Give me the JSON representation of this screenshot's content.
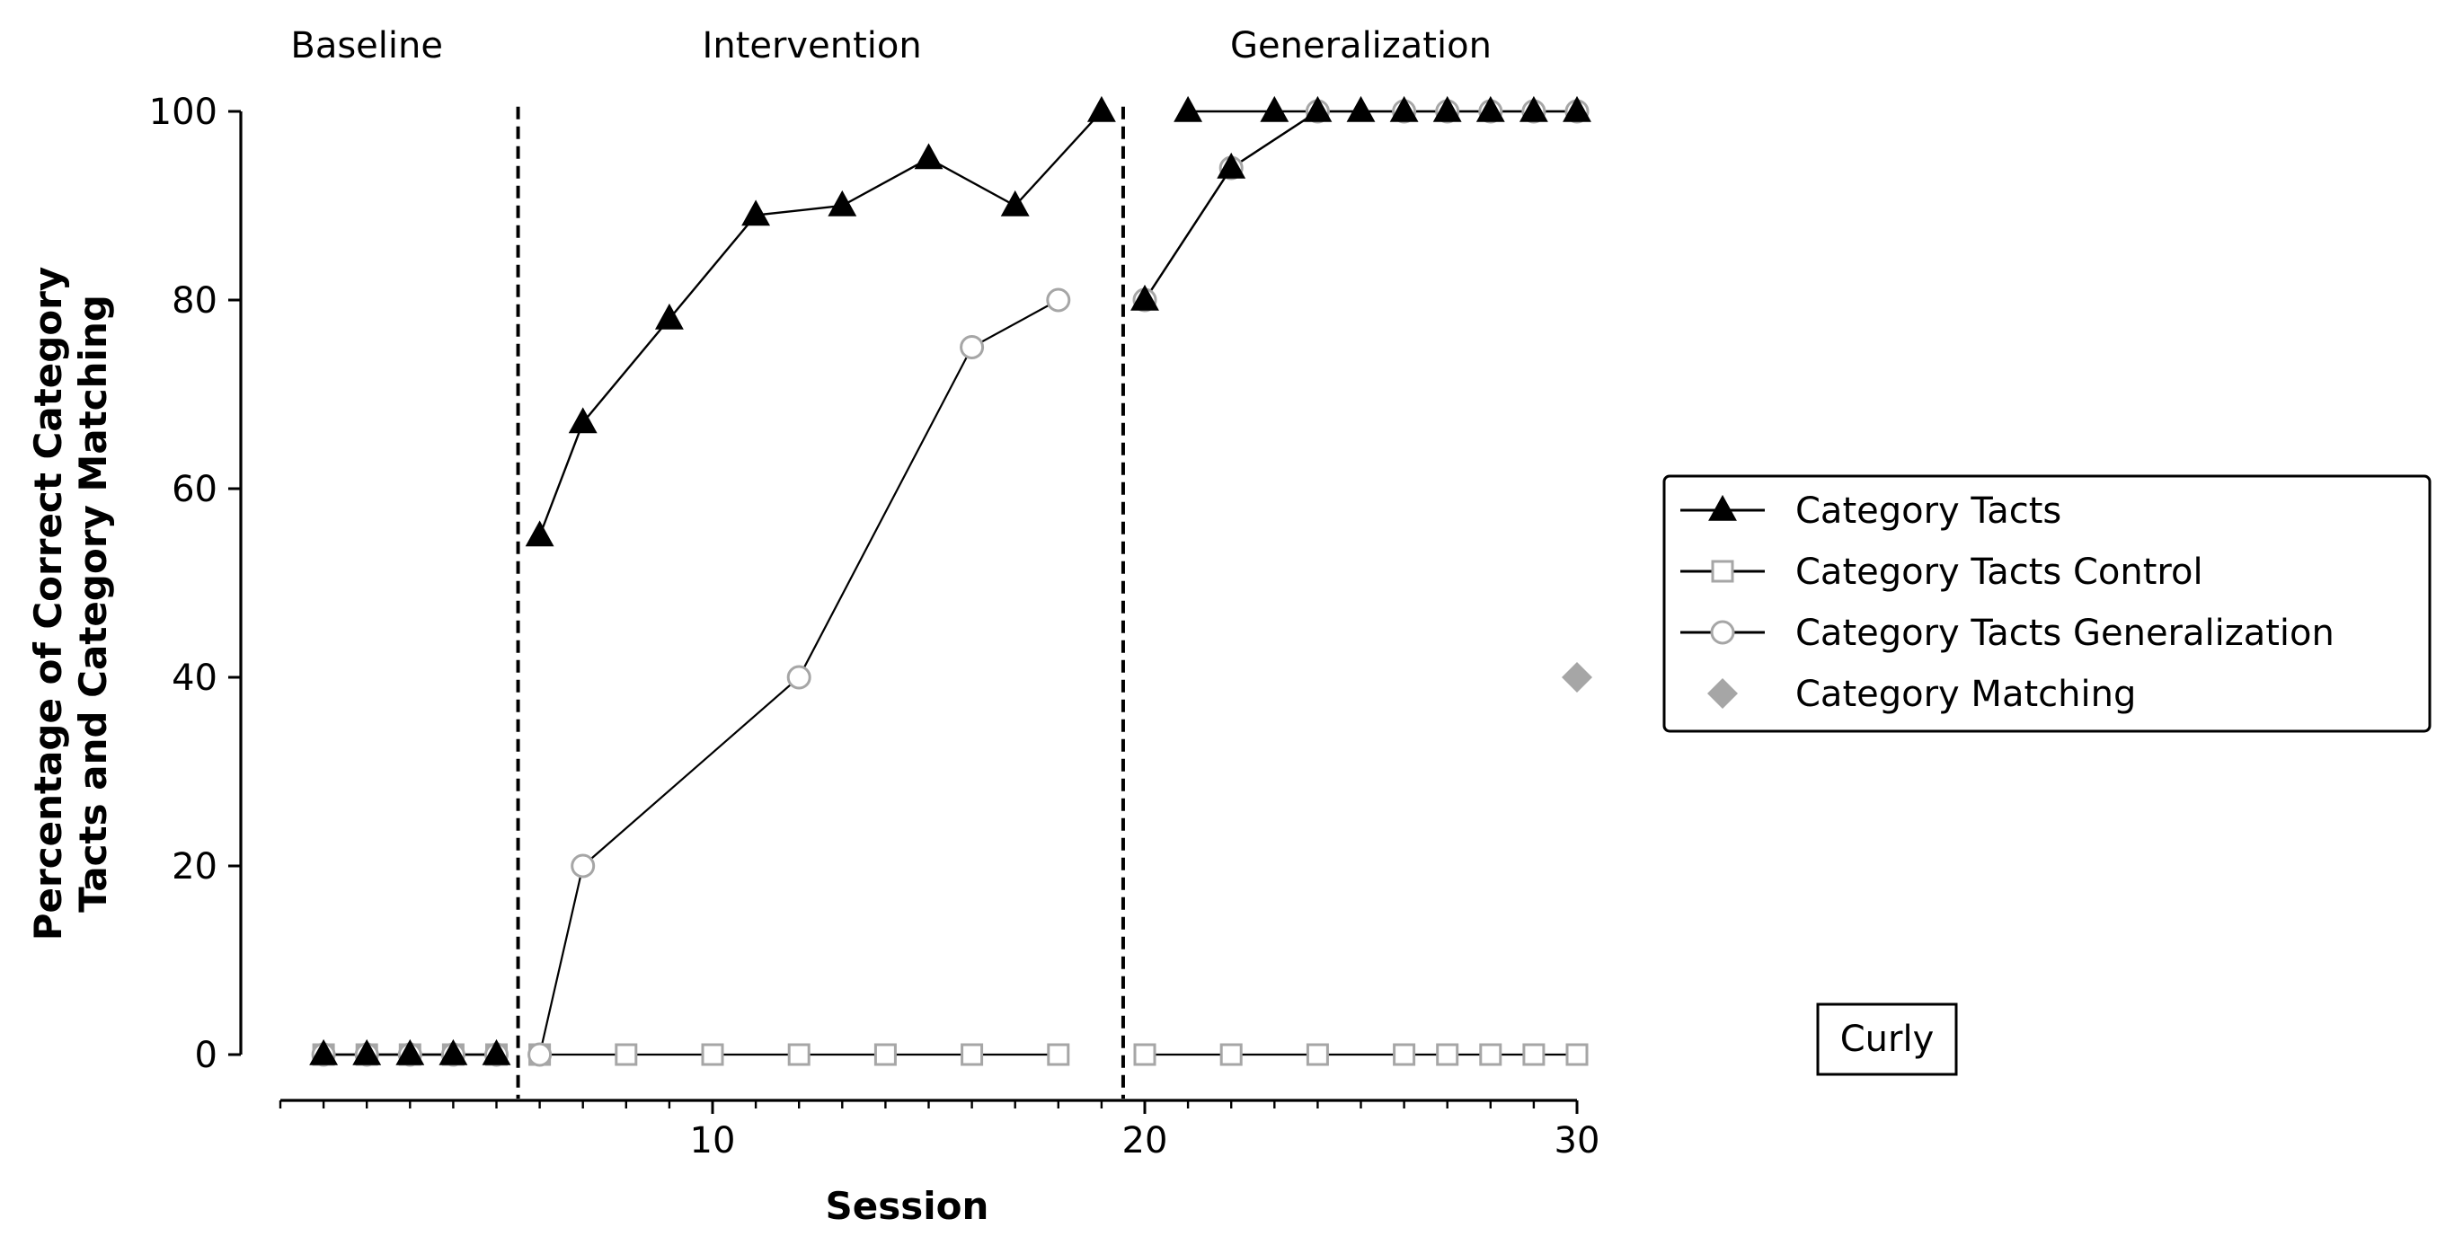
{
  "chart_data": {
    "type": "line",
    "xlabel": "Session",
    "ylabel_lines": [
      "Percentage of Correct Category",
      "Tacts and Category Matching"
    ],
    "xlim": [
      0,
      30
    ],
    "ylim": [
      -5,
      105
    ],
    "xticks_major": [
      10,
      20,
      30
    ],
    "xticks_minor": [
      0,
      1,
      2,
      3,
      4,
      5,
      6,
      7,
      8,
      9,
      10,
      11,
      12,
      13,
      14,
      15,
      16,
      17,
      18,
      19,
      20,
      21,
      22,
      23,
      24,
      25,
      26,
      27,
      28,
      29,
      30
    ],
    "yticks": [
      0,
      20,
      40,
      60,
      80,
      100
    ],
    "grid": false,
    "phase_lines": [
      5.5,
      19.5
    ],
    "phases": [
      {
        "label": "Baseline",
        "x": 2
      },
      {
        "label": "Intervention",
        "x": 12.3
      },
      {
        "label": "Generalization",
        "x": 25.0
      }
    ],
    "participant": "Curly",
    "legend_placement": "right",
    "series": [
      {
        "name": "Category Tacts",
        "marker": "triangle",
        "color": "#000000",
        "fill": "#000000",
        "segments": [
          [
            [
              1,
              0
            ],
            [
              2,
              0
            ],
            [
              3,
              0
            ],
            [
              4,
              0
            ],
            [
              5,
              0
            ]
          ],
          [
            [
              6,
              55
            ],
            [
              7,
              67
            ],
            [
              9,
              78
            ],
            [
              11,
              89
            ],
            [
              13,
              90
            ],
            [
              15,
              95
            ],
            [
              17,
              90
            ],
            [
              19,
              100
            ]
          ],
          [
            [
              20,
              80
            ],
            [
              22,
              94
            ],
            [
              24,
              100
            ]
          ],
          [
            [
              21,
              100
            ],
            [
              23,
              100
            ],
            [
              25,
              100
            ],
            [
              26,
              100
            ],
            [
              27,
              100
            ],
            [
              28,
              100
            ],
            [
              29,
              100
            ],
            [
              30,
              100
            ]
          ]
        ]
      },
      {
        "name": "Category Tacts Control",
        "marker": "square",
        "color": "#000000",
        "markerColor": "#a6a6a6",
        "fill": "#ffffff",
        "segments": [
          [
            [
              1,
              0
            ],
            [
              2,
              0
            ],
            [
              3,
              0
            ],
            [
              4,
              0
            ],
            [
              5,
              0
            ]
          ],
          [
            [
              6,
              0
            ],
            [
              8,
              0
            ],
            [
              10,
              0
            ],
            [
              12,
              0
            ],
            [
              14,
              0
            ],
            [
              16,
              0
            ],
            [
              18,
              0
            ]
          ],
          [
            [
              20,
              0
            ],
            [
              22,
              0
            ],
            [
              24,
              0
            ],
            [
              26,
              0
            ],
            [
              27,
              0
            ],
            [
              28,
              0
            ],
            [
              29,
              0
            ],
            [
              30,
              0
            ]
          ]
        ]
      },
      {
        "name": "Category Tacts Generalization",
        "marker": "circle",
        "color": "#000000",
        "markerColor": "#a6a6a6",
        "fill": "#ffffff",
        "segments": [
          [
            [
              1,
              0
            ],
            [
              2,
              0
            ],
            [
              3,
              0
            ],
            [
              4,
              0
            ],
            [
              5,
              0
            ]
          ],
          [
            [
              6,
              0
            ],
            [
              7,
              20
            ],
            [
              12,
              40
            ],
            [
              16,
              75
            ],
            [
              18,
              80
            ]
          ],
          [
            [
              20,
              80
            ],
            [
              22,
              94
            ],
            [
              24,
              100
            ],
            [
              26,
              100
            ],
            [
              27,
              100
            ],
            [
              28,
              100
            ],
            [
              29,
              100
            ],
            [
              30,
              100
            ]
          ]
        ]
      },
      {
        "name": "Category Matching",
        "marker": "diamond",
        "color": "#a6a6a6",
        "fill": "#a6a6a6",
        "segments": [
          [
            [
              30,
              40
            ]
          ]
        ]
      }
    ]
  }
}
